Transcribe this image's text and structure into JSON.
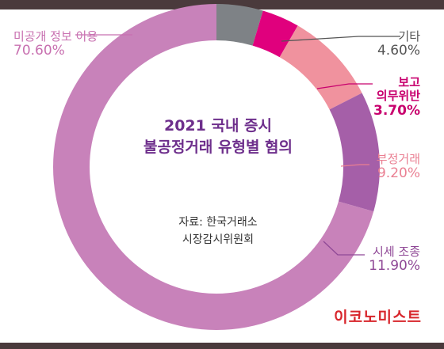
{
  "chart_data": {
    "type": "pie",
    "title_lines": [
      "2021 국내 증시",
      "불공정거래 유형별 혐의"
    ],
    "source_lines": [
      "자료: 한국거래소",
      "시장감시위원회"
    ],
    "slices": [
      {
        "name": "기타",
        "name_lines": [
          "기타"
        ],
        "value": 4.6,
        "label": "4.60%",
        "color": "#7e8286",
        "text_color": "#555555"
      },
      {
        "name": "보고 의무위반",
        "name_lines": [
          "보고",
          "의무위반"
        ],
        "value": 3.7,
        "label": "3.70%",
        "color": "#e0007d",
        "text_color": "#c8006e"
      },
      {
        "name": "부정거래",
        "name_lines": [
          "부정거래"
        ],
        "value": 9.2,
        "label": "9.20%",
        "color": "#f0929e",
        "text_color": "#ea7f92"
      },
      {
        "name": "시세 조종",
        "name_lines": [
          "시세 조종"
        ],
        "value": 11.9,
        "label": "11.90%",
        "color": "#a55fa8",
        "text_color": "#8f4896"
      },
      {
        "name": "미공개 정보 이용",
        "name_lines": [
          "미공개 정보 이용"
        ],
        "value": 70.6,
        "label": "70.60%",
        "color": "#c882ba",
        "text_color": "#c870b0"
      }
    ]
  },
  "brand": "이코노미스트"
}
